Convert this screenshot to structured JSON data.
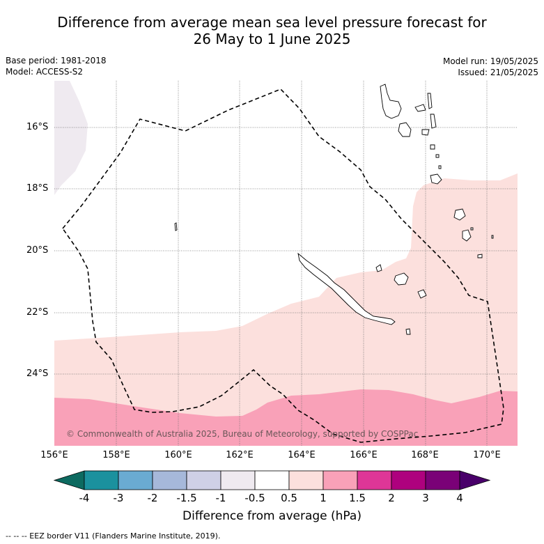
{
  "title": {
    "line1": "Difference from average mean sea level pressure forecast for",
    "line2": "26 May to 1 June 2025"
  },
  "metadata": {
    "base_period": "Base period: 1981-2018",
    "model": "Model: ACCESS-S2",
    "model_run": "Model run: 19/05/2025",
    "issued": "Issued: 21/05/2025"
  },
  "map": {
    "lat_labels": [
      "16°S",
      "18°S",
      "20°S",
      "22°S",
      "24°S"
    ],
    "lon_labels": [
      "156°E",
      "158°E",
      "160°E",
      "162°E",
      "164°E",
      "166°E",
      "168°E",
      "170°E"
    ],
    "copyright": "© Commonwealth of Australia 2025, Bureau of Meteorology, supported by COSPPac",
    "region_colors": {
      "minus_1_to_minus_0_5": "#efeaf0",
      "minus_0_5_to_0_5": "#ffffff",
      "0_5_to_1": "#fce0dd",
      "1_to_1_5": "#f9a1b8"
    },
    "eez_border": "dashed"
  },
  "colorbar": {
    "tick_labels": [
      "-4",
      "-3",
      "-2",
      "-1.5",
      "-1",
      "-0.5",
      "0.5",
      "1",
      "1.5",
      "2",
      "3",
      "4"
    ],
    "colors": [
      "#0d6a60",
      "#1b919e",
      "#6aabd2",
      "#a6b8da",
      "#cfd0e6",
      "#efeaf0",
      "#ffffff",
      "#fce0dd",
      "#f9a1b8",
      "#de3697",
      "#ae017e",
      "#7a0177",
      "#49006a"
    ],
    "label": "Difference from average (hPa)"
  },
  "footer": {
    "eez_note": "--  --  -- EEZ border V11 (Flanders Marine Institute, 2019)."
  }
}
